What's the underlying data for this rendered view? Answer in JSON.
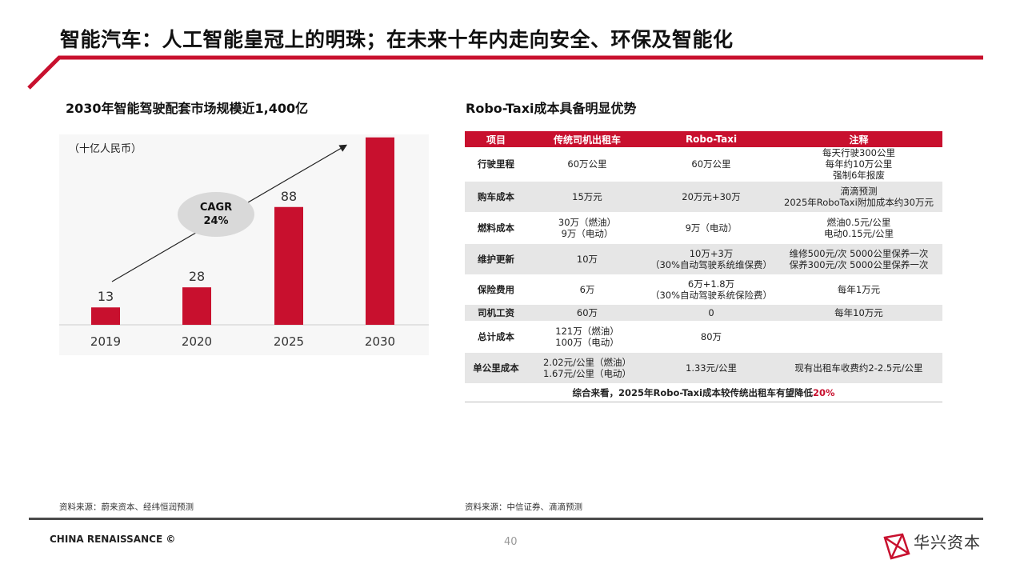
{
  "page": {
    "title": "智能汽车：人工智能皇冠上的明珠；在未来十年内走向安全、环保及智能化",
    "footer": "CHINA RENAISSANCE ©",
    "page_number": "40",
    "brand_name": "华兴资本",
    "accent_color": "#c8102e"
  },
  "left": {
    "title": "2030年智能驾驶配套市场规模近1,400亿",
    "unit": "（十亿人民币）",
    "cagr_label": "CAGR",
    "cagr_value": "24%",
    "source": "资料来源：蔚来资本、经纬恒润预测"
  },
  "chart_data": {
    "type": "bar",
    "title": "2030年智能驾驶配套市场规模近1,400亿",
    "ylabel": "（十亿人民币）",
    "categories": [
      "2019",
      "2020",
      "2025",
      "2030"
    ],
    "values": [
      13,
      28,
      88,
      140
    ],
    "ylim": [
      0,
      160
    ],
    "color": "#c8102e",
    "grid": false,
    "annotation": "CAGR 24%"
  },
  "right": {
    "title": "Robo-Taxi成本具备明显优势",
    "headers": [
      "项目",
      "传统司机出租车",
      "Robo-Taxi",
      "注释"
    ],
    "rows": [
      [
        "行驶里程",
        "60万公里",
        "60万公里",
        "每天行驶300公里\n每年约10万公里\n强制6年报废"
      ],
      [
        "购车成本",
        "15万元",
        "20万元+30万",
        "滴滴预测\n2025年RoboTaxi附加成本约30万元"
      ],
      [
        "燃料成本",
        "30万（燃油）\n9万（电动）",
        "9万（电动）",
        "燃油0.5元/公里\n电动0.15元/公里"
      ],
      [
        "维护更新",
        "10万",
        "10万+3万\n（30%自动驾驶系统维保费）",
        "维修500元/次 5000公里保养一次\n保养300元/次 5000公里保养一次"
      ],
      [
        "保险费用",
        "6万",
        "6万+1.8万\n（30%自动驾驶系统保险费）",
        "每年1万元"
      ],
      [
        "司机工资",
        "60万",
        "0",
        "每年10万元"
      ],
      [
        "总计成本",
        "121万（燃油）\n100万（电动）",
        "80万",
        ""
      ],
      [
        "单公里成本",
        "2.02元/公里（燃油）\n1.67元/公里（电动）",
        "1.33元/公里",
        "现有出租车收费约2-2.5元/公里"
      ]
    ],
    "summary_prefix": "综合来看，2025年Robo-Taxi成本较传统出租车有望降低",
    "summary_highlight": "20%",
    "source": "资料来源：中信证券、滴滴预测"
  }
}
